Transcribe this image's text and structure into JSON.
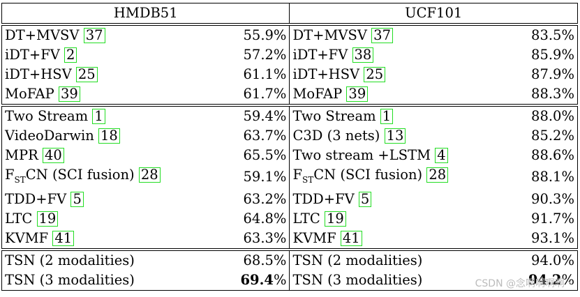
{
  "header": {
    "hmdb": "HMDB51",
    "ucf": "UCF101"
  },
  "groups": [
    [
      {
        "h_name": "DT+MVSV",
        "h_cite": "37",
        "h_acc": "55.9%",
        "u_name": "DT+MVSV",
        "u_cite": "37",
        "u_acc": "83.5%"
      },
      {
        "h_name": "iDT+FV",
        "h_cite": "2",
        "h_acc": "57.2%",
        "u_name": "iDT+FV",
        "u_cite": "38",
        "u_acc": "85.9%"
      },
      {
        "h_name": "iDT+HSV",
        "h_cite": "25",
        "h_acc": "61.1%",
        "u_name": "iDT+HSV",
        "u_cite": "25",
        "u_acc": "87.9%"
      },
      {
        "h_name": "MoFAP",
        "h_cite": "39",
        "h_acc": "61.7%",
        "u_name": "MoFAP",
        "u_cite": "39",
        "u_acc": "88.3%"
      }
    ],
    [
      {
        "h_name": "Two Stream",
        "h_cite": "1",
        "h_acc": "59.4%",
        "u_name": "Two Stream",
        "u_cite": "1",
        "u_acc": "88.0%"
      },
      {
        "h_name": "VideoDarwin",
        "h_cite": "18",
        "h_acc": "63.7%",
        "u_name": "C3D (3 nets)",
        "u_cite": "13",
        "u_acc": "85.2%"
      },
      {
        "h_name": "MPR",
        "h_cite": "40",
        "h_acc": "65.5%",
        "u_name": "Two stream +LSTM",
        "u_cite": "4",
        "u_acc": "88.6%"
      },
      {
        "h_name": "F",
        "h_sub": "ST",
        "h_name2": "CN (SCI fusion)",
        "h_cite": "28",
        "h_acc": "59.1%",
        "u_name": "F",
        "u_sub": "ST",
        "u_name2": "CN (SCI fusion)",
        "u_cite": "28",
        "u_acc": "88.1%"
      },
      {
        "h_name": "TDD+FV",
        "h_cite": "5",
        "h_acc": "63.2%",
        "u_name": "TDD+FV",
        "u_cite": "5",
        "u_acc": "90.3%"
      },
      {
        "h_name": "LTC",
        "h_cite": "19",
        "h_acc": "64.8%",
        "u_name": "LTC",
        "u_cite": "19",
        "u_acc": "91.7%"
      },
      {
        "h_name": "KVMF",
        "h_cite": "41",
        "h_acc": "63.3%",
        "u_name": "KVMF",
        "u_cite": "41",
        "u_acc": "93.1%"
      }
    ],
    [
      {
        "h_name": "TSN (2 modalities)",
        "h_acc": "68.5%",
        "u_name": "TSN (2 modalities)",
        "u_acc": "94.0%"
      },
      {
        "h_name": "TSN (3 modalities)",
        "h_acc_bold": "69.4",
        "h_acc_tail": "%",
        "u_name": "TSN (3 modalities)",
        "u_acc_bold": "94.2",
        "u_acc_tail": "%"
      }
    ]
  ],
  "watermark": "CSDN @念啊啊啊啊丶"
}
